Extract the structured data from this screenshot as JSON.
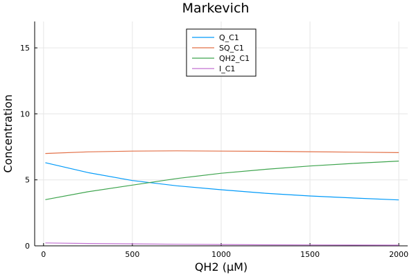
{
  "chart_data": {
    "type": "line",
    "title": "Markevich",
    "xlabel": "QH2 (μM)",
    "ylabel": "Concentration",
    "xlim": [
      -50,
      2050
    ],
    "ylim": [
      0,
      17
    ],
    "x_ticks": [
      0,
      500,
      1000,
      1500,
      2000
    ],
    "y_ticks": [
      0,
      5,
      10,
      15
    ],
    "x_tick_labels": [
      "0",
      "500",
      "1000",
      "1500",
      "2000"
    ],
    "y_tick_labels": [
      "0",
      "5",
      "10",
      "15"
    ],
    "grid": true,
    "legend_position": "top-center",
    "x": [
      10,
      250,
      500,
      750,
      1000,
      1250,
      1500,
      1750,
      2000
    ],
    "series": [
      {
        "name": "Q_C1",
        "color": "#009af9",
        "values": [
          6.3,
          5.55,
          4.95,
          4.55,
          4.25,
          3.98,
          3.78,
          3.62,
          3.48
        ]
      },
      {
        "name": "SQ_C1",
        "color": "#e26f46",
        "values": [
          7.0,
          7.12,
          7.18,
          7.2,
          7.18,
          7.16,
          7.13,
          7.1,
          7.06
        ]
      },
      {
        "name": "QH2_C1",
        "color": "#3da44d",
        "values": [
          3.5,
          4.1,
          4.6,
          5.1,
          5.5,
          5.8,
          6.05,
          6.25,
          6.42
        ]
      },
      {
        "name": "I_C1",
        "color": "#c271d2",
        "values": [
          0.22,
          0.18,
          0.15,
          0.12,
          0.1,
          0.08,
          0.07,
          0.06,
          0.05
        ]
      }
    ]
  }
}
